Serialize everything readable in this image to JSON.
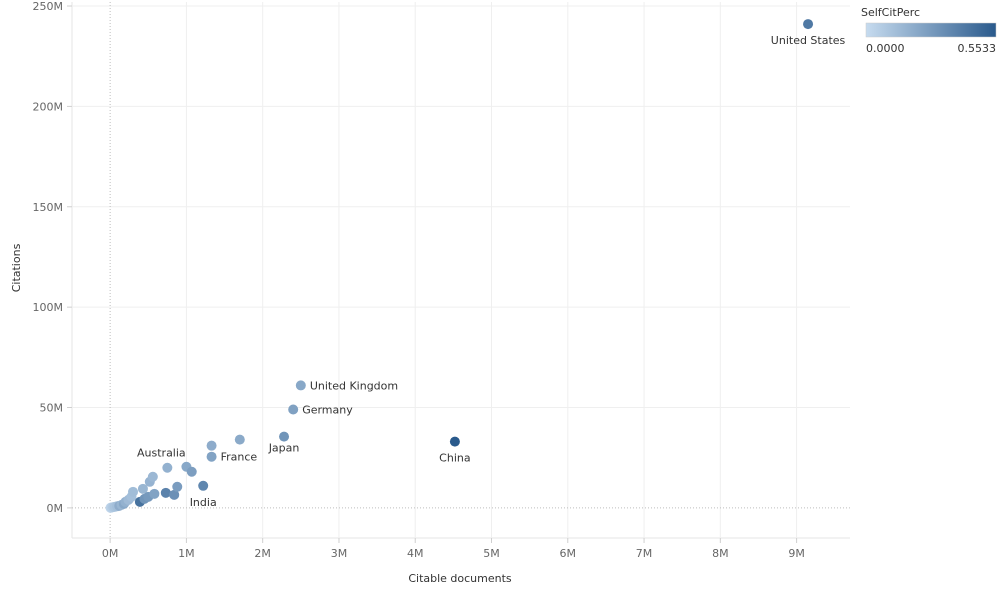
{
  "chart_data": {
    "type": "scatter",
    "xlabel": "Citable documents",
    "ylabel": "Citations",
    "xlim": [
      -500000,
      9700000
    ],
    "ylim": [
      -15000000,
      252000000
    ],
    "x_ticks": [
      0,
      1000000,
      2000000,
      3000000,
      4000000,
      5000000,
      6000000,
      7000000,
      8000000,
      9000000
    ],
    "x_tick_labels": [
      "0M",
      "1M",
      "2M",
      "3M",
      "4M",
      "5M",
      "6M",
      "7M",
      "8M",
      "9M"
    ],
    "y_ticks": [
      0,
      50000000,
      100000000,
      150000000,
      200000000,
      250000000
    ],
    "y_tick_labels": [
      "0M",
      "50M",
      "100M",
      "150M",
      "200M",
      "250M"
    ],
    "grid": true,
    "color_legend": {
      "title": "SelfCitPerc",
      "min_label": "0.0000",
      "max_label": "0.5533",
      "min": 0.0,
      "max": 0.5533,
      "color_low": "#c6dbef",
      "color_high": "#2a5a8c",
      "placement": "top-right"
    },
    "points": [
      {
        "x": 9150000,
        "y": 241000000,
        "c": 0.42,
        "label": "United States"
      },
      {
        "x": 4520000,
        "y": 33000000,
        "c": 0.5533,
        "label": "China"
      },
      {
        "x": 2500000,
        "y": 61000000,
        "c": 0.22,
        "label": "United Kingdom"
      },
      {
        "x": 2400000,
        "y": 49000000,
        "c": 0.25,
        "label": "Germany"
      },
      {
        "x": 2280000,
        "y": 35500000,
        "c": 0.3,
        "label": "Japan"
      },
      {
        "x": 1330000,
        "y": 25500000,
        "c": 0.24,
        "label": "France"
      },
      {
        "x": 1220000,
        "y": 11000000,
        "c": 0.36,
        "label": "India"
      },
      {
        "x": 750000,
        "y": 20000000,
        "c": 0.18,
        "label": "Australia"
      },
      {
        "x": 1330000,
        "y": 31000000,
        "c": 0.2,
        "label": ""
      },
      {
        "x": 1700000,
        "y": 34000000,
        "c": 0.21,
        "label": ""
      },
      {
        "x": 1000000,
        "y": 20500000,
        "c": 0.22,
        "label": ""
      },
      {
        "x": 1070000,
        "y": 18000000,
        "c": 0.26,
        "label": ""
      },
      {
        "x": 880000,
        "y": 10500000,
        "c": 0.27,
        "label": ""
      },
      {
        "x": 840000,
        "y": 6500000,
        "c": 0.32,
        "label": ""
      },
      {
        "x": 730000,
        "y": 7500000,
        "c": 0.38,
        "label": ""
      },
      {
        "x": 560000,
        "y": 15500000,
        "c": 0.15,
        "label": ""
      },
      {
        "x": 520000,
        "y": 13000000,
        "c": 0.17,
        "label": ""
      },
      {
        "x": 430000,
        "y": 9500000,
        "c": 0.16,
        "label": ""
      },
      {
        "x": 580000,
        "y": 7000000,
        "c": 0.24,
        "label": ""
      },
      {
        "x": 500000,
        "y": 5500000,
        "c": 0.28,
        "label": ""
      },
      {
        "x": 450000,
        "y": 4500000,
        "c": 0.3,
        "label": ""
      },
      {
        "x": 390000,
        "y": 3000000,
        "c": 0.45,
        "label": ""
      },
      {
        "x": 300000,
        "y": 8000000,
        "c": 0.13,
        "label": ""
      },
      {
        "x": 280000,
        "y": 5500000,
        "c": 0.12,
        "label": ""
      },
      {
        "x": 240000,
        "y": 4000000,
        "c": 0.14,
        "label": ""
      },
      {
        "x": 200000,
        "y": 3000000,
        "c": 0.18,
        "label": ""
      },
      {
        "x": 180000,
        "y": 2000000,
        "c": 0.22,
        "label": ""
      },
      {
        "x": 150000,
        "y": 1500000,
        "c": 0.16,
        "label": ""
      },
      {
        "x": 120000,
        "y": 1000000,
        "c": 0.2,
        "label": ""
      },
      {
        "x": 90000,
        "y": 800000,
        "c": 0.12,
        "label": ""
      },
      {
        "x": 60000,
        "y": 500000,
        "c": 0.1,
        "label": ""
      },
      {
        "x": 40000,
        "y": 400000,
        "c": 0.08,
        "label": ""
      },
      {
        "x": 20000,
        "y": 200000,
        "c": 0.05,
        "label": ""
      },
      {
        "x": 10000,
        "y": 100000,
        "c": 0.03,
        "label": ""
      },
      {
        "x": 5000,
        "y": 50000,
        "c": 0.02,
        "label": ""
      }
    ]
  }
}
